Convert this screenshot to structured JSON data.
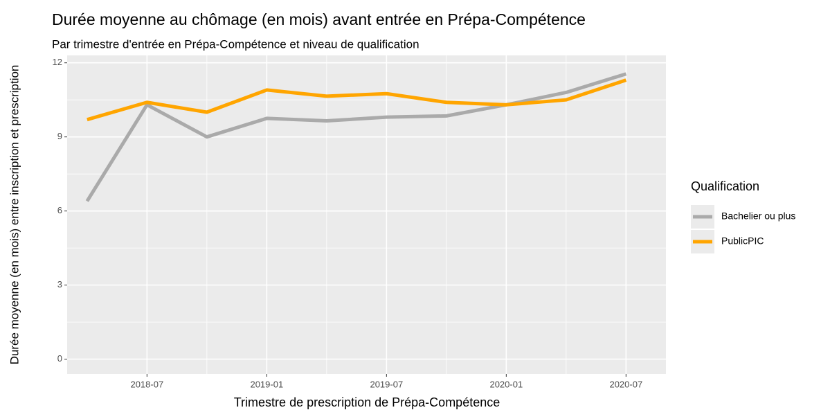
{
  "chart_data": {
    "type": "line",
    "title": "Durée moyenne au chômage (en mois) avant entrée en Prépa-Compétence",
    "subtitle": "Par trimestre d'entrée en Prépa-Compétence et niveau de qualification",
    "x_label": "Trimestre de prescription de Prépa-Compétence",
    "y_label": "Durée moyenne (en mois) entre inscription et prescription",
    "x": [
      "2018-04",
      "2018-07",
      "2018-10",
      "2019-01",
      "2019-04",
      "2019-07",
      "2019-10",
      "2020-01",
      "2020-04",
      "2020-07"
    ],
    "series": [
      {
        "name": "Bachelier ou plus",
        "color": "#aaaaaa",
        "values": [
          6.4,
          10.3,
          9.0,
          9.75,
          9.65,
          9.8,
          9.85,
          10.3,
          10.8,
          11.55
        ]
      },
      {
        "name": "PublicPIC",
        "color": "#ffa500",
        "values": [
          9.7,
          10.4,
          10.0,
          10.9,
          10.65,
          10.75,
          10.4,
          10.3,
          10.5,
          11.3
        ]
      }
    ],
    "xlim": [
      "2018-03",
      "2020-09"
    ],
    "xticks": [
      "2018-07",
      "2019-01",
      "2019-07",
      "2020-01",
      "2020-07"
    ],
    "ylim": [
      -0.6,
      12.3
    ],
    "yticks": [
      0,
      3,
      6,
      9,
      12
    ],
    "grid": true,
    "legend_title": "Qualification",
    "legend_position": "right"
  }
}
